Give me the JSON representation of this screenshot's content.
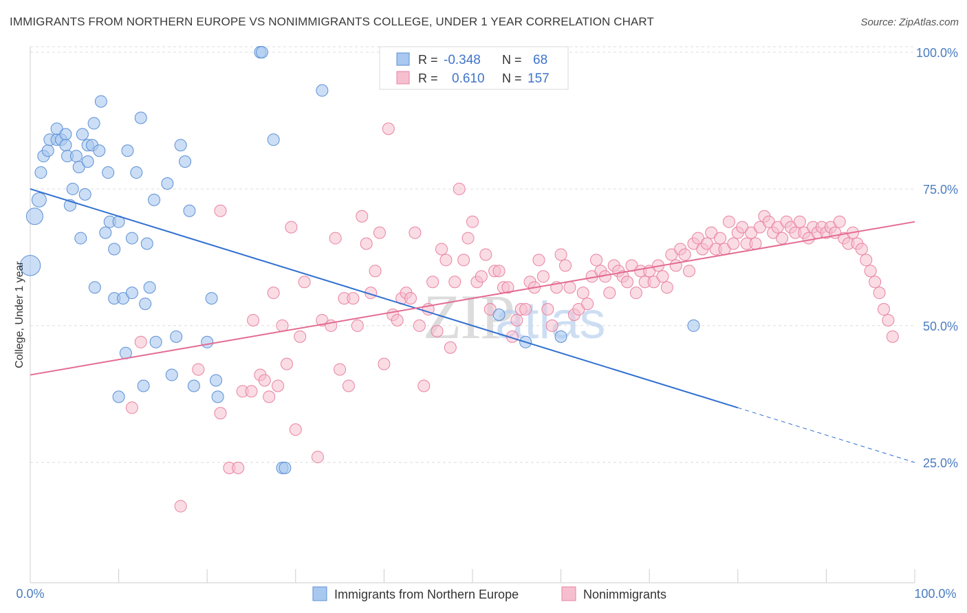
{
  "title": "IMMIGRANTS FROM NORTHERN EUROPE VS NONIMMIGRANTS COLLEGE, UNDER 1 YEAR CORRELATION CHART",
  "source": "Source: ZipAtlas.com",
  "colors": {
    "blue_fill": "#a9c8ef",
    "blue_stroke": "#5b8fd6",
    "blue_line": "#2f6fd0",
    "pink_fill": "#f6bfd0",
    "pink_stroke": "#e9819f",
    "pink_line": "#e36b92",
    "grid": "#dcdcdc",
    "tick_text": "#4a7cc0"
  },
  "legend": {
    "rows": [
      {
        "r_label": "R =",
        "r_value": "-0.348",
        "n_label": "N =",
        "n_value": "68",
        "color": "blue"
      },
      {
        "r_label": "R =",
        "r_value": "0.610",
        "n_label": "N =",
        "n_value": "157",
        "color": "pink"
      }
    ]
  },
  "bottom_legend": [
    "Immigrants from Northern Europe",
    "Nonimmigrants"
  ],
  "chart_data": {
    "type": "scatter",
    "title": "IMMIGRANTS FROM NORTHERN EUROPE VS NONIMMIGRANTS COLLEGE, UNDER 1 YEAR CORRELATION CHART",
    "xlabel": "",
    "ylabel": "College, Under 1 year",
    "xlim": [
      0,
      100
    ],
    "ylim": [
      3,
      101
    ],
    "x_tick_labels": [
      "0.0%",
      "100.0%"
    ],
    "y_ticks": [
      25,
      50,
      75,
      100
    ],
    "y_tick_labels": [
      "25.0%",
      "50.0%",
      "75.0%",
      "100.0%"
    ],
    "grid": true,
    "legend_position": "top-center",
    "watermark": "ZIPatlas",
    "series": [
      {
        "name": "Immigrants from Northern Europe",
        "color": "blue",
        "trend": {
          "x": [
            0,
            80
          ],
          "y": [
            75,
            35
          ],
          "dashed_extension": {
            "x": [
              80,
              100
            ],
            "y": [
              35,
              25
            ]
          }
        },
        "points": [
          {
            "x": 0,
            "y": 61,
            "s": 3
          },
          {
            "x": 0.5,
            "y": 70,
            "s": 2
          },
          {
            "x": 1,
            "y": 73,
            "s": 1.5
          },
          {
            "x": 1.2,
            "y": 78,
            "s": 1
          },
          {
            "x": 1.5,
            "y": 81,
            "s": 1
          },
          {
            "x": 2,
            "y": 82,
            "s": 1
          },
          {
            "x": 2.2,
            "y": 84,
            "s": 1
          },
          {
            "x": 3,
            "y": 84,
            "s": 1
          },
          {
            "x": 3,
            "y": 86,
            "s": 1
          },
          {
            "x": 3.5,
            "y": 84,
            "s": 1
          },
          {
            "x": 4,
            "y": 85,
            "s": 1
          },
          {
            "x": 4,
            "y": 83,
            "s": 1
          },
          {
            "x": 4.2,
            "y": 81,
            "s": 1
          },
          {
            "x": 4.5,
            "y": 72,
            "s": 1
          },
          {
            "x": 4.8,
            "y": 75,
            "s": 1
          },
          {
            "x": 5.2,
            "y": 81,
            "s": 1
          },
          {
            "x": 5.5,
            "y": 79,
            "s": 1
          },
          {
            "x": 5.7,
            "y": 66,
            "s": 1
          },
          {
            "x": 5.9,
            "y": 85,
            "s": 1
          },
          {
            "x": 6.2,
            "y": 74,
            "s": 1
          },
          {
            "x": 6.5,
            "y": 83,
            "s": 1
          },
          {
            "x": 6.5,
            "y": 80,
            "s": 1
          },
          {
            "x": 7,
            "y": 83,
            "s": 1
          },
          {
            "x": 7.2,
            "y": 87,
            "s": 1
          },
          {
            "x": 7.3,
            "y": 57,
            "s": 1
          },
          {
            "x": 7.8,
            "y": 82,
            "s": 1
          },
          {
            "x": 8,
            "y": 91,
            "s": 1
          },
          {
            "x": 8.5,
            "y": 67,
            "s": 1
          },
          {
            "x": 8.8,
            "y": 78,
            "s": 1
          },
          {
            "x": 9,
            "y": 69,
            "s": 1
          },
          {
            "x": 9.5,
            "y": 64,
            "s": 1
          },
          {
            "x": 9.5,
            "y": 55,
            "s": 1
          },
          {
            "x": 10,
            "y": 69,
            "s": 1
          },
          {
            "x": 10,
            "y": 37,
            "s": 1
          },
          {
            "x": 10.5,
            "y": 55,
            "s": 1
          },
          {
            "x": 10.8,
            "y": 45,
            "s": 1
          },
          {
            "x": 11,
            "y": 82,
            "s": 1
          },
          {
            "x": 11.5,
            "y": 56,
            "s": 1
          },
          {
            "x": 11.5,
            "y": 66,
            "s": 1
          },
          {
            "x": 12,
            "y": 78,
            "s": 1
          },
          {
            "x": 12.5,
            "y": 88,
            "s": 1
          },
          {
            "x": 12.8,
            "y": 39,
            "s": 1
          },
          {
            "x": 13,
            "y": 54,
            "s": 1
          },
          {
            "x": 13.2,
            "y": 65,
            "s": 1
          },
          {
            "x": 13.5,
            "y": 57,
            "s": 1
          },
          {
            "x": 14,
            "y": 73,
            "s": 1
          },
          {
            "x": 14.2,
            "y": 47,
            "s": 1
          },
          {
            "x": 15.5,
            "y": 76,
            "s": 1
          },
          {
            "x": 16,
            "y": 41,
            "s": 1
          },
          {
            "x": 16.5,
            "y": 48,
            "s": 1
          },
          {
            "x": 17,
            "y": 83,
            "s": 1
          },
          {
            "x": 17.5,
            "y": 80,
            "s": 1
          },
          {
            "x": 18,
            "y": 71,
            "s": 1
          },
          {
            "x": 18.5,
            "y": 39,
            "s": 1
          },
          {
            "x": 20,
            "y": 47,
            "s": 1
          },
          {
            "x": 20.5,
            "y": 55,
            "s": 1
          },
          {
            "x": 21,
            "y": 40,
            "s": 1
          },
          {
            "x": 21.2,
            "y": 37,
            "s": 1
          },
          {
            "x": 26,
            "y": 100,
            "s": 1
          },
          {
            "x": 26.2,
            "y": 100,
            "s": 1
          },
          {
            "x": 27.5,
            "y": 84,
            "s": 1
          },
          {
            "x": 28.5,
            "y": 24,
            "s": 1
          },
          {
            "x": 28.8,
            "y": 24,
            "s": 1
          },
          {
            "x": 33,
            "y": 93,
            "s": 1
          },
          {
            "x": 53,
            "y": 52,
            "s": 1
          },
          {
            "x": 56,
            "y": 47,
            "s": 1
          },
          {
            "x": 60,
            "y": 48,
            "s": 1
          },
          {
            "x": 75,
            "y": 50,
            "s": 1
          }
        ]
      },
      {
        "name": "Nonimmigrants",
        "color": "pink",
        "trend": {
          "x": [
            0,
            100
          ],
          "y": [
            41,
            69
          ]
        },
        "points": [
          {
            "x": 11.5,
            "y": 35
          },
          {
            "x": 12.5,
            "y": 47
          },
          {
            "x": 17,
            "y": 17
          },
          {
            "x": 19,
            "y": 42
          },
          {
            "x": 21.5,
            "y": 34
          },
          {
            "x": 21.5,
            "y": 71
          },
          {
            "x": 22.5,
            "y": 24
          },
          {
            "x": 23.5,
            "y": 24
          },
          {
            "x": 24,
            "y": 38
          },
          {
            "x": 25,
            "y": 38
          },
          {
            "x": 25.2,
            "y": 51
          },
          {
            "x": 26,
            "y": 41
          },
          {
            "x": 26.5,
            "y": 40
          },
          {
            "x": 27,
            "y": 37
          },
          {
            "x": 27.5,
            "y": 56
          },
          {
            "x": 28,
            "y": 39
          },
          {
            "x": 28.5,
            "y": 50
          },
          {
            "x": 29,
            "y": 43
          },
          {
            "x": 29.5,
            "y": 68
          },
          {
            "x": 30,
            "y": 31
          },
          {
            "x": 30.5,
            "y": 48
          },
          {
            "x": 31,
            "y": 58
          },
          {
            "x": 32.5,
            "y": 26
          },
          {
            "x": 33,
            "y": 51
          },
          {
            "x": 34,
            "y": 50
          },
          {
            "x": 34.5,
            "y": 66
          },
          {
            "x": 35,
            "y": 42
          },
          {
            "x": 35.5,
            "y": 55
          },
          {
            "x": 36,
            "y": 39
          },
          {
            "x": 36.5,
            "y": 55
          },
          {
            "x": 37,
            "y": 50
          },
          {
            "x": 37.5,
            "y": 70
          },
          {
            "x": 38,
            "y": 65
          },
          {
            "x": 38.5,
            "y": 56
          },
          {
            "x": 39,
            "y": 60
          },
          {
            "x": 39.5,
            "y": 67
          },
          {
            "x": 40,
            "y": 43
          },
          {
            "x": 40.5,
            "y": 86
          },
          {
            "x": 41,
            "y": 52
          },
          {
            "x": 41.5,
            "y": 51
          },
          {
            "x": 42,
            "y": 55
          },
          {
            "x": 42.5,
            "y": 56
          },
          {
            "x": 43,
            "y": 55
          },
          {
            "x": 43.5,
            "y": 67
          },
          {
            "x": 44,
            "y": 50
          },
          {
            "x": 44.5,
            "y": 39
          },
          {
            "x": 45,
            "y": 53
          },
          {
            "x": 45.5,
            "y": 58
          },
          {
            "x": 46,
            "y": 49
          },
          {
            "x": 46.5,
            "y": 64
          },
          {
            "x": 47,
            "y": 62
          },
          {
            "x": 47.5,
            "y": 46
          },
          {
            "x": 48,
            "y": 58
          },
          {
            "x": 48.5,
            "y": 75
          },
          {
            "x": 49,
            "y": 62
          },
          {
            "x": 49.5,
            "y": 66
          },
          {
            "x": 50,
            "y": 69
          },
          {
            "x": 50.5,
            "y": 58
          },
          {
            "x": 51,
            "y": 59
          },
          {
            "x": 51.5,
            "y": 63
          },
          {
            "x": 52,
            "y": 53
          },
          {
            "x": 52.5,
            "y": 60
          },
          {
            "x": 53,
            "y": 60
          },
          {
            "x": 53.5,
            "y": 57
          },
          {
            "x": 54,
            "y": 57
          },
          {
            "x": 54.5,
            "y": 48
          },
          {
            "x": 55,
            "y": 51
          },
          {
            "x": 55.5,
            "y": 53
          },
          {
            "x": 56,
            "y": 53
          },
          {
            "x": 56.5,
            "y": 58
          },
          {
            "x": 57,
            "y": 57
          },
          {
            "x": 57.5,
            "y": 62
          },
          {
            "x": 58,
            "y": 59
          },
          {
            "x": 58.5,
            "y": 53
          },
          {
            "x": 59,
            "y": 50
          },
          {
            "x": 59.5,
            "y": 57
          },
          {
            "x": 60,
            "y": 63
          },
          {
            "x": 60.5,
            "y": 61
          },
          {
            "x": 61,
            "y": 57
          },
          {
            "x": 61.5,
            "y": 52
          },
          {
            "x": 62,
            "y": 53
          },
          {
            "x": 62.5,
            "y": 56
          },
          {
            "x": 63,
            "y": 54
          },
          {
            "x": 63.5,
            "y": 59
          },
          {
            "x": 64,
            "y": 62
          },
          {
            "x": 64.5,
            "y": 60
          },
          {
            "x": 65,
            "y": 59
          },
          {
            "x": 65.5,
            "y": 56
          },
          {
            "x": 66,
            "y": 61
          },
          {
            "x": 66.5,
            "y": 60
          },
          {
            "x": 67,
            "y": 59
          },
          {
            "x": 67.5,
            "y": 58
          },
          {
            "x": 68,
            "y": 61
          },
          {
            "x": 68.5,
            "y": 56
          },
          {
            "x": 69,
            "y": 60
          },
          {
            "x": 69.5,
            "y": 58
          },
          {
            "x": 70,
            "y": 60
          },
          {
            "x": 70.5,
            "y": 58
          },
          {
            "x": 71,
            "y": 61
          },
          {
            "x": 71.5,
            "y": 59
          },
          {
            "x": 72,
            "y": 57
          },
          {
            "x": 72.5,
            "y": 63
          },
          {
            "x": 73,
            "y": 61
          },
          {
            "x": 73.5,
            "y": 64
          },
          {
            "x": 74,
            "y": 63
          },
          {
            "x": 74.5,
            "y": 60
          },
          {
            "x": 75,
            "y": 65
          },
          {
            "x": 75.5,
            "y": 66
          },
          {
            "x": 76,
            "y": 64
          },
          {
            "x": 76.5,
            "y": 65
          },
          {
            "x": 77,
            "y": 67
          },
          {
            "x": 77.5,
            "y": 64
          },
          {
            "x": 78,
            "y": 66
          },
          {
            "x": 78.5,
            "y": 64
          },
          {
            "x": 79,
            "y": 69
          },
          {
            "x": 79.5,
            "y": 65
          },
          {
            "x": 80,
            "y": 67
          },
          {
            "x": 80.5,
            "y": 68
          },
          {
            "x": 81,
            "y": 65
          },
          {
            "x": 81.5,
            "y": 67
          },
          {
            "x": 82,
            "y": 65
          },
          {
            "x": 82.5,
            "y": 68
          },
          {
            "x": 83,
            "y": 70
          },
          {
            "x": 83.5,
            "y": 69
          },
          {
            "x": 84,
            "y": 67
          },
          {
            "x": 84.5,
            "y": 68
          },
          {
            "x": 85,
            "y": 66
          },
          {
            "x": 85.5,
            "y": 69
          },
          {
            "x": 86,
            "y": 68
          },
          {
            "x": 86.5,
            "y": 67
          },
          {
            "x": 87,
            "y": 69
          },
          {
            "x": 87.5,
            "y": 67
          },
          {
            "x": 88,
            "y": 66
          },
          {
            "x": 88.5,
            "y": 68
          },
          {
            "x": 89,
            "y": 67
          },
          {
            "x": 89.5,
            "y": 68
          },
          {
            "x": 90,
            "y": 67
          },
          {
            "x": 90.5,
            "y": 68
          },
          {
            "x": 91,
            "y": 67
          },
          {
            "x": 91.5,
            "y": 69
          },
          {
            "x": 92,
            "y": 66
          },
          {
            "x": 92.5,
            "y": 65
          },
          {
            "x": 93,
            "y": 67
          },
          {
            "x": 93.5,
            "y": 65
          },
          {
            "x": 94,
            "y": 64
          },
          {
            "x": 94.5,
            "y": 62
          },
          {
            "x": 95,
            "y": 60
          },
          {
            "x": 95.5,
            "y": 58
          },
          {
            "x": 96,
            "y": 56
          },
          {
            "x": 96.5,
            "y": 53
          },
          {
            "x": 97,
            "y": 51
          },
          {
            "x": 97.5,
            "y": 48
          }
        ]
      }
    ]
  }
}
